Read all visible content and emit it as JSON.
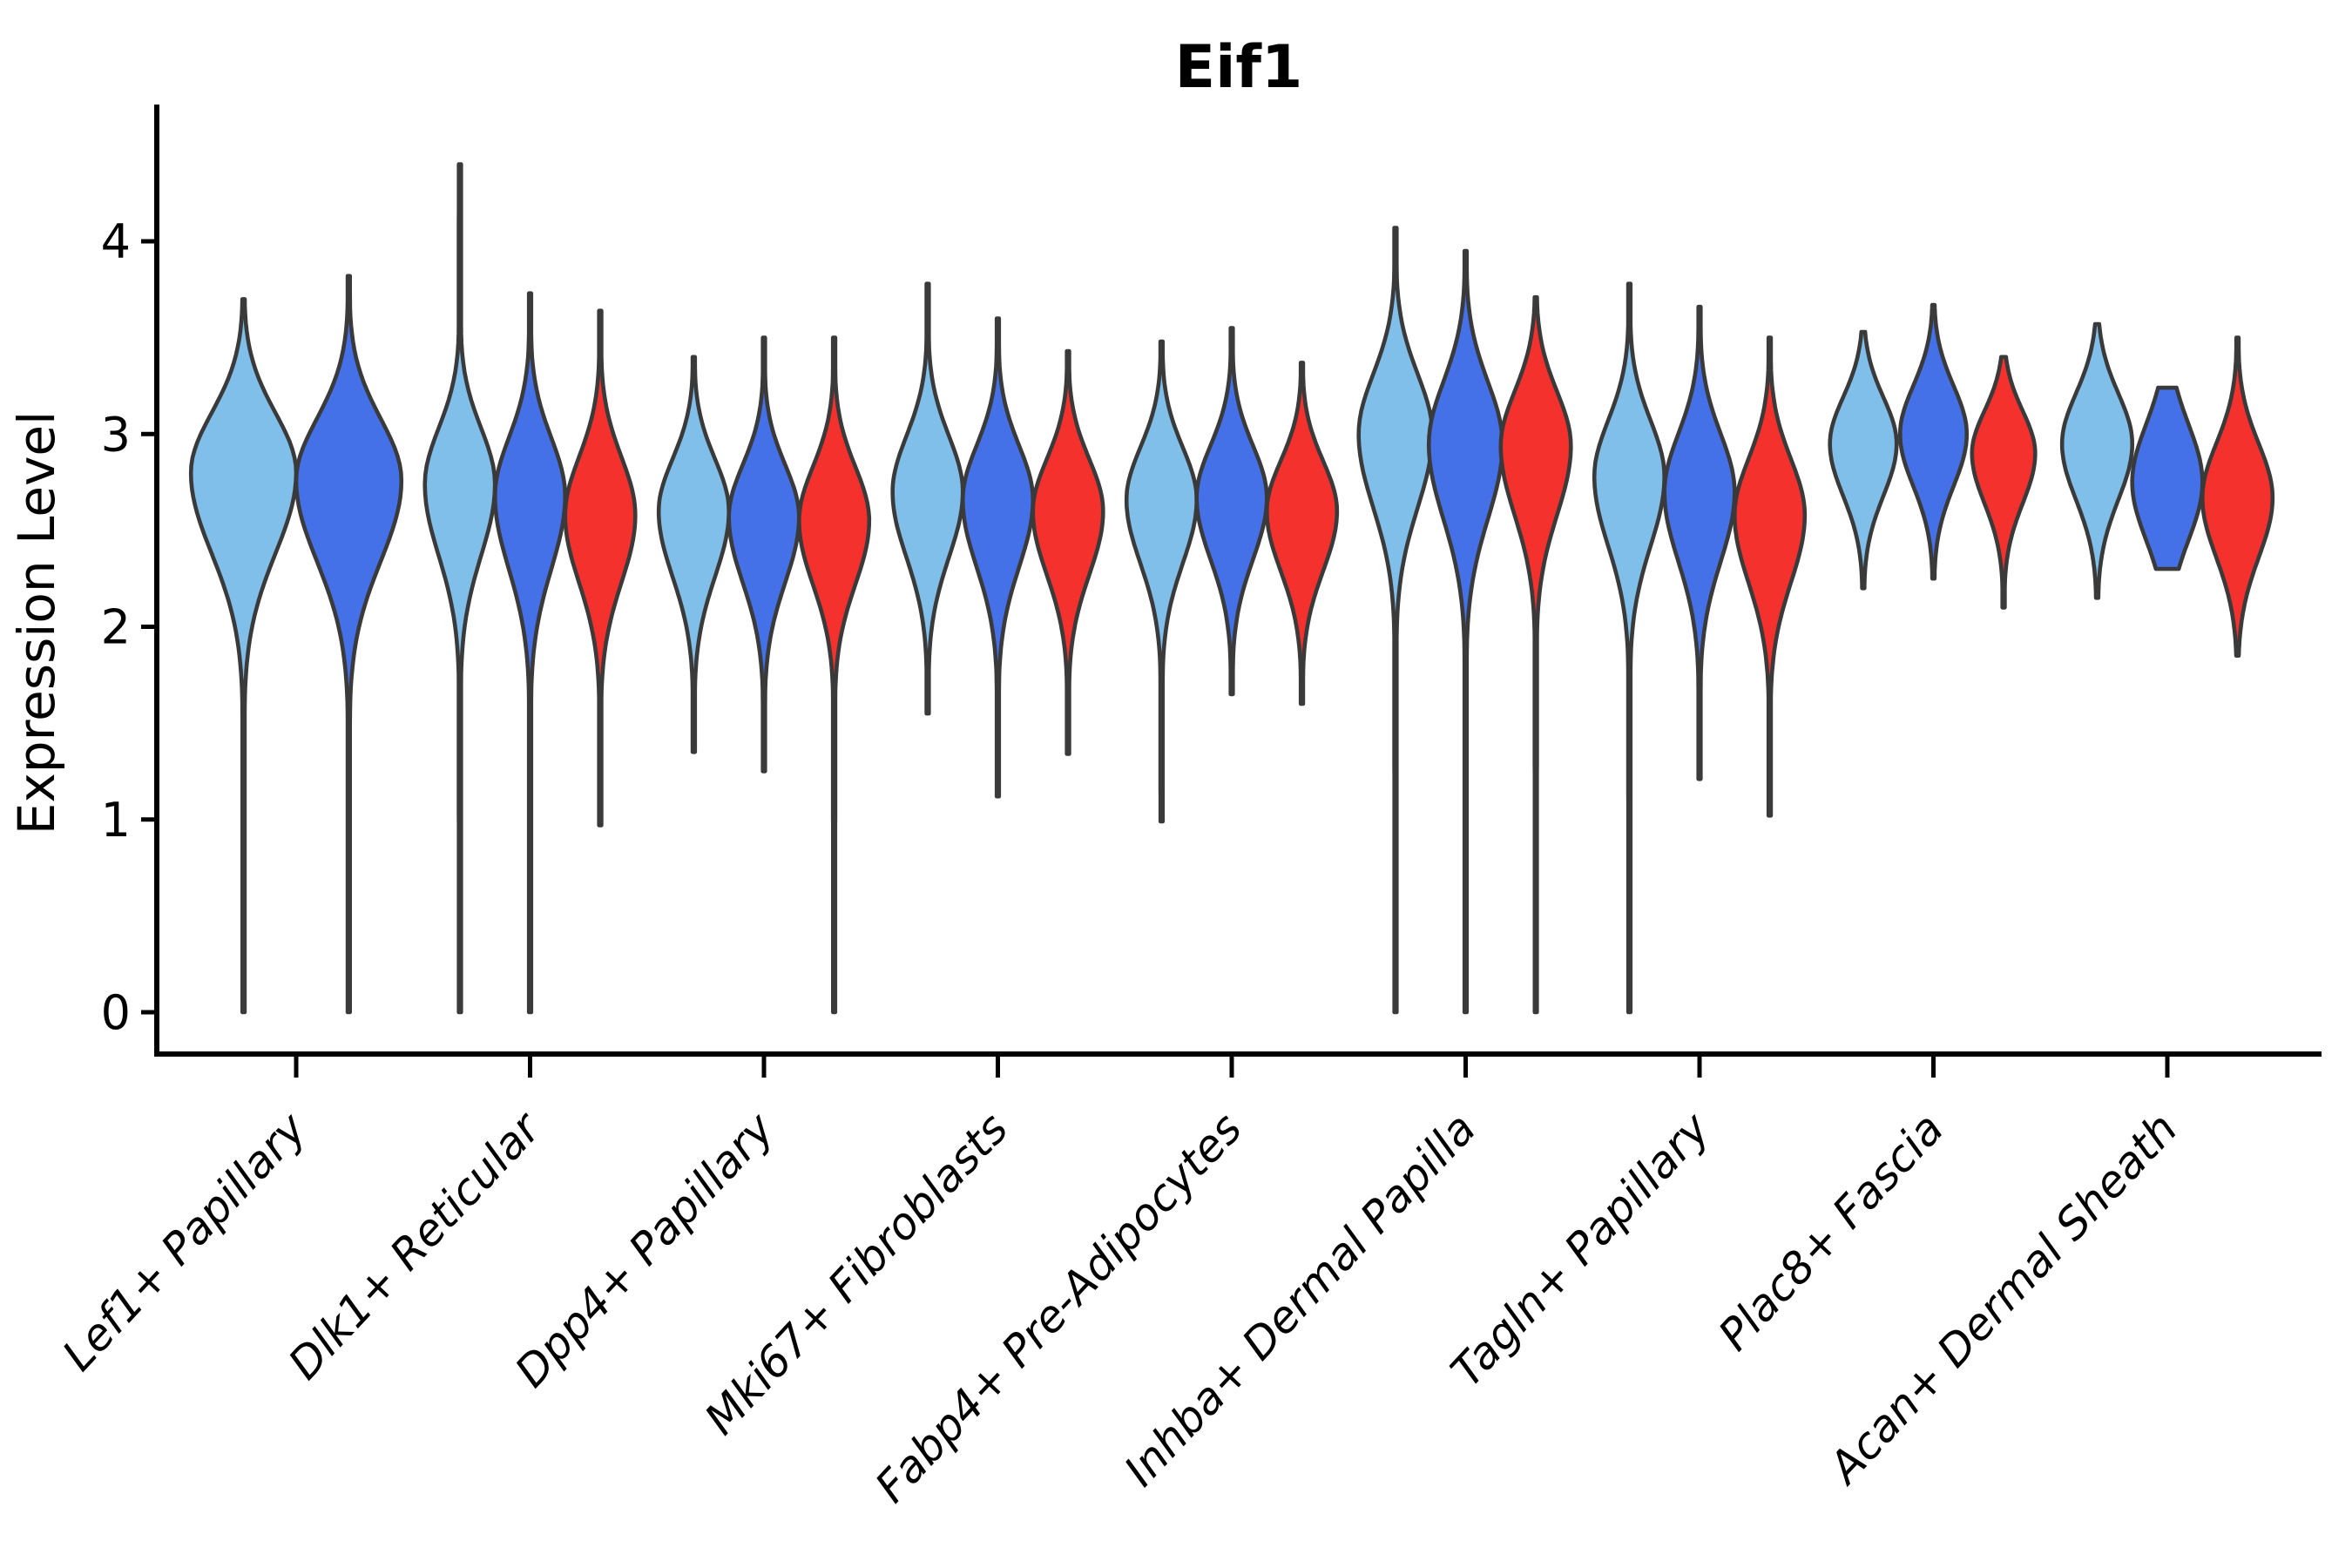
{
  "title": "Eif1",
  "axes": {
    "ylabel": "Expression Level",
    "yticks": [
      "0",
      "1",
      "2",
      "3",
      "4"
    ]
  },
  "colors": {
    "split_light_blue": "#7FBFEA",
    "split_royal_blue": "#4470E8",
    "split_red": "#F5312D",
    "violin_outline": "#3A3A3A",
    "axis_color": "#000000"
  },
  "chart_data": {
    "type": "violin",
    "title": "Eif1",
    "xlabel": "",
    "ylabel": "Expression Level",
    "ylim": [
      -0.25,
      4.7
    ],
    "yticks": [
      0,
      1,
      2,
      3,
      4
    ],
    "grid": false,
    "legend_position": "none",
    "x_label_rotation_deg": 47,
    "categories": [
      "Lef1+ Papillary",
      "Dlk1+ Reticular",
      "Dpp4+ Papillary",
      "Mki67+ Fibroblasts",
      "Fabp4+ Pre-Adipocytes",
      "Inhba+ Dermal Papilla",
      "Tagln+ Papillary",
      "Plac8+ Fascia",
      "Acan+ Dermal Sheath"
    ],
    "split_levels": [
      {
        "name": "split-light-blue",
        "color": "#7FBFEA"
      },
      {
        "name": "split-royal-blue",
        "color": "#4470E8"
      },
      {
        "name": "split-red",
        "color": "#F5312D"
      }
    ],
    "violins": [
      {
        "category": 0,
        "split": 0,
        "min": 0.0,
        "max": 3.7,
        "mode": 2.8,
        "sigma_up": 0.31,
        "sigma_down": 0.42,
        "slot": -0.225,
        "width": 0.45
      },
      {
        "category": 0,
        "split": 1,
        "min": 0.0,
        "max": 3.82,
        "mode": 2.76,
        "sigma_up": 0.32,
        "sigma_down": 0.42,
        "slot": 0.225,
        "width": 0.45
      },
      {
        "category": 1,
        "split": 0,
        "min": 0.0,
        "max": 4.4,
        "mode": 2.74,
        "sigma_up": 0.29,
        "sigma_down": 0.37,
        "slot": -0.3,
        "width": 0.3
      },
      {
        "category": 1,
        "split": 1,
        "min": 0.0,
        "max": 3.73,
        "mode": 2.68,
        "sigma_up": 0.3,
        "sigma_down": 0.38,
        "slot": 0.0,
        "width": 0.3
      },
      {
        "category": 1,
        "split": 2,
        "min": 0.97,
        "max": 3.64,
        "mode": 2.58,
        "sigma_up": 0.3,
        "sigma_down": 0.35,
        "slot": 0.3,
        "width": 0.3
      },
      {
        "category": 2,
        "split": 0,
        "min": 1.35,
        "max": 3.4,
        "mode": 2.6,
        "sigma_up": 0.27,
        "sigma_down": 0.34,
        "slot": -0.3,
        "width": 0.3
      },
      {
        "category": 2,
        "split": 1,
        "min": 1.25,
        "max": 3.5,
        "mode": 2.57,
        "sigma_up": 0.27,
        "sigma_down": 0.34,
        "slot": 0.0,
        "width": 0.3
      },
      {
        "category": 2,
        "split": 2,
        "min": 0.0,
        "max": 3.5,
        "mode": 2.55,
        "sigma_up": 0.28,
        "sigma_down": 0.33,
        "slot": 0.3,
        "width": 0.3
      },
      {
        "category": 3,
        "split": 0,
        "min": 1.55,
        "max": 3.78,
        "mode": 2.7,
        "sigma_up": 0.29,
        "sigma_down": 0.34,
        "slot": -0.3,
        "width": 0.3
      },
      {
        "category": 3,
        "split": 1,
        "min": 1.12,
        "max": 3.6,
        "mode": 2.66,
        "sigma_up": 0.28,
        "sigma_down": 0.35,
        "slot": 0.0,
        "width": 0.3
      },
      {
        "category": 3,
        "split": 2,
        "min": 1.34,
        "max": 3.43,
        "mode": 2.6,
        "sigma_up": 0.27,
        "sigma_down": 0.33,
        "slot": 0.3,
        "width": 0.3
      },
      {
        "category": 4,
        "split": 0,
        "min": 0.99,
        "max": 3.48,
        "mode": 2.66,
        "sigma_up": 0.27,
        "sigma_down": 0.33,
        "slot": -0.3,
        "width": 0.3
      },
      {
        "category": 4,
        "split": 1,
        "min": 1.65,
        "max": 3.55,
        "mode": 2.67,
        "sigma_up": 0.27,
        "sigma_down": 0.32,
        "slot": 0.0,
        "width": 0.3
      },
      {
        "category": 4,
        "split": 2,
        "min": 1.6,
        "max": 3.37,
        "mode": 2.6,
        "sigma_up": 0.26,
        "sigma_down": 0.31,
        "slot": 0.3,
        "width": 0.3
      },
      {
        "category": 5,
        "split": 0,
        "min": 0.0,
        "max": 4.07,
        "mode": 3.0,
        "sigma_up": 0.31,
        "sigma_down": 0.38,
        "slot": -0.3,
        "width": 0.315
      },
      {
        "category": 5,
        "split": 1,
        "min": 0.0,
        "max": 3.95,
        "mode": 2.95,
        "sigma_up": 0.32,
        "sigma_down": 0.39,
        "slot": 0.0,
        "width": 0.315
      },
      {
        "category": 5,
        "split": 2,
        "min": 0.0,
        "max": 3.71,
        "mode": 2.94,
        "sigma_up": 0.28,
        "sigma_down": 0.36,
        "slot": 0.3,
        "width": 0.3
      },
      {
        "category": 6,
        "split": 0,
        "min": 0.0,
        "max": 3.78,
        "mode": 2.78,
        "sigma_up": 0.29,
        "sigma_down": 0.36,
        "slot": -0.3,
        "width": 0.3
      },
      {
        "category": 6,
        "split": 1,
        "min": 1.21,
        "max": 3.66,
        "mode": 2.7,
        "sigma_up": 0.3,
        "sigma_down": 0.36,
        "slot": 0.0,
        "width": 0.3
      },
      {
        "category": 6,
        "split": 2,
        "min": 1.02,
        "max": 3.5,
        "mode": 2.58,
        "sigma_up": 0.29,
        "sigma_down": 0.35,
        "slot": 0.3,
        "width": 0.3
      },
      {
        "category": 7,
        "split": 0,
        "min": 2.2,
        "max": 3.53,
        "mode": 2.95,
        "sigma_up": 0.24,
        "sigma_down": 0.27,
        "slot": -0.3,
        "width": 0.285
      },
      {
        "category": 7,
        "split": 1,
        "min": 2.25,
        "max": 3.67,
        "mode": 3.0,
        "sigma_up": 0.25,
        "sigma_down": 0.27,
        "slot": 0.0,
        "width": 0.285
      },
      {
        "category": 7,
        "split": 2,
        "min": 2.1,
        "max": 3.4,
        "mode": 2.9,
        "sigma_up": 0.22,
        "sigma_down": 0.26,
        "slot": 0.3,
        "width": 0.27
      },
      {
        "category": 8,
        "split": 0,
        "min": 2.15,
        "max": 3.57,
        "mode": 2.95,
        "sigma_up": 0.26,
        "sigma_down": 0.29,
        "slot": -0.3,
        "width": 0.3
      },
      {
        "category": 8,
        "split": 1,
        "min": 2.3,
        "max": 3.24,
        "mode": 2.75,
        "sigma_up": 0.3,
        "sigma_down": 0.3,
        "slot": 0.0,
        "width": 0.3
      },
      {
        "category": 8,
        "split": 2,
        "min": 1.85,
        "max": 3.5,
        "mode": 2.67,
        "sigma_up": 0.28,
        "sigma_down": 0.31,
        "slot": 0.3,
        "width": 0.3
      }
    ]
  }
}
